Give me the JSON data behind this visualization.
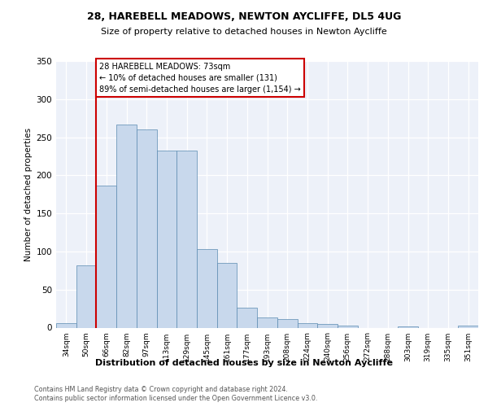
{
  "title1": "28, HAREBELL MEADOWS, NEWTON AYCLIFFE, DL5 4UG",
  "title2": "Size of property relative to detached houses in Newton Aycliffe",
  "xlabel": "Distribution of detached houses by size in Newton Aycliffe",
  "ylabel": "Number of detached properties",
  "categories": [
    "34sqm",
    "50sqm",
    "66sqm",
    "82sqm",
    "97sqm",
    "113sqm",
    "129sqm",
    "145sqm",
    "161sqm",
    "177sqm",
    "193sqm",
    "208sqm",
    "224sqm",
    "240sqm",
    "256sqm",
    "272sqm",
    "288sqm",
    "303sqm",
    "319sqm",
    "335sqm",
    "351sqm"
  ],
  "values": [
    6,
    82,
    186,
    267,
    260,
    232,
    232,
    103,
    85,
    26,
    13,
    11,
    6,
    5,
    3,
    0,
    0,
    2,
    0,
    0,
    3
  ],
  "bar_color": "#c8d8ec",
  "bar_edge_color": "#5a8ab0",
  "vline_index": 1.5,
  "vline_color": "#cc0000",
  "annotation_text": "28 HAREBELL MEADOWS: 73sqm\n← 10% of detached houses are smaller (131)\n89% of semi-detached houses are larger (1,154) →",
  "ylim_max": 350,
  "yticks": [
    0,
    50,
    100,
    150,
    200,
    250,
    300,
    350
  ],
  "footer1": "Contains HM Land Registry data © Crown copyright and database right 2024.",
  "footer2": "Contains public sector information licensed under the Open Government Licence v3.0.",
  "bg_color": "#edf1f9"
}
